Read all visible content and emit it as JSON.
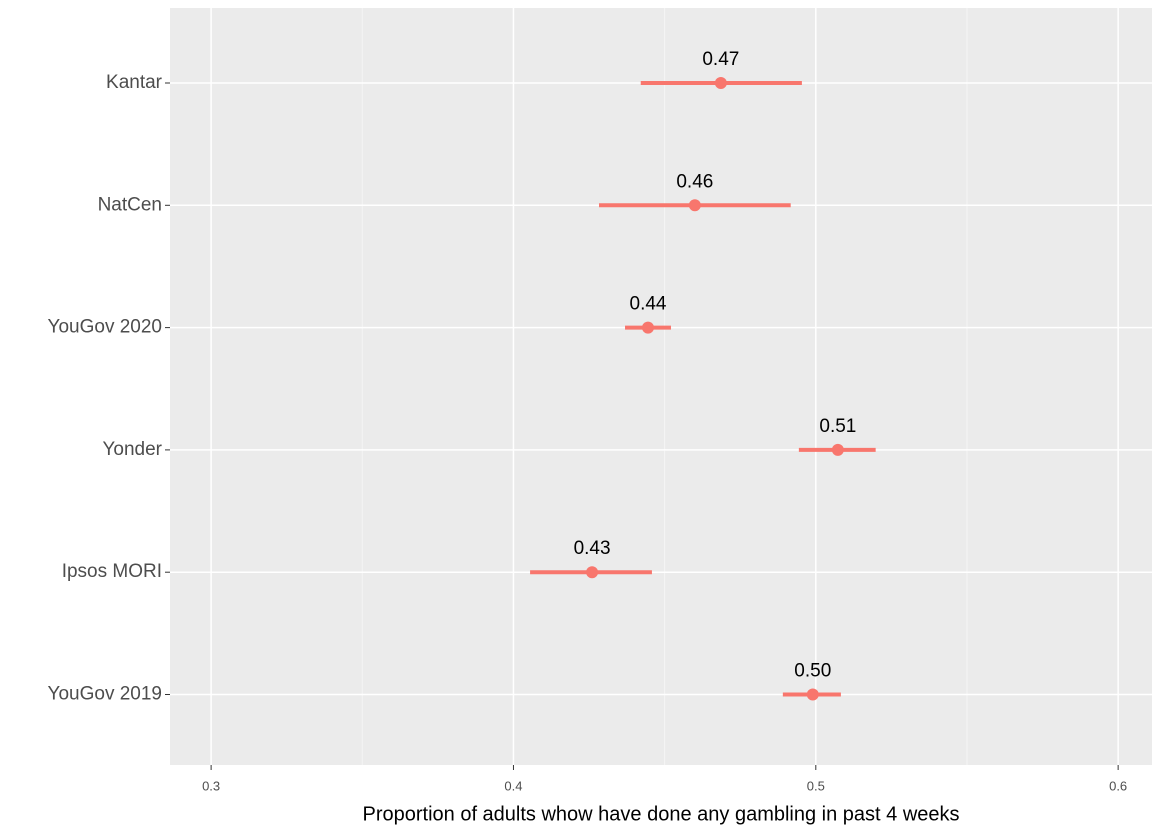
{
  "chart_data": {
    "type": "pointrange",
    "x_label": "Proportion of adults whow have done any gambling in past 4 weeks",
    "categories": [
      "Kantar",
      "NatCen",
      "YouGov 2020",
      "Yonder",
      "Ipsos MORI",
      "YouGov 2019"
    ],
    "values": [
      0.4686,
      0.46,
      0.4445,
      0.5073,
      0.426,
      0.499
    ],
    "value_labels": [
      "0.47",
      "0.46",
      "0.44",
      "0.51",
      "0.43",
      "0.50"
    ],
    "lower": [
      0.4421,
      0.4283,
      0.4369,
      0.4944,
      0.4055,
      0.4891
    ],
    "upper": [
      0.4954,
      0.4917,
      0.4521,
      0.5198,
      0.4458,
      0.5083
    ],
    "color": "#f8766d",
    "xlim": [
      0.2864,
      0.6112
    ],
    "xticks": [
      0.3,
      0.4,
      0.5,
      0.6
    ],
    "xminor": [
      0.35,
      0.45,
      0.55
    ],
    "grid": true
  }
}
